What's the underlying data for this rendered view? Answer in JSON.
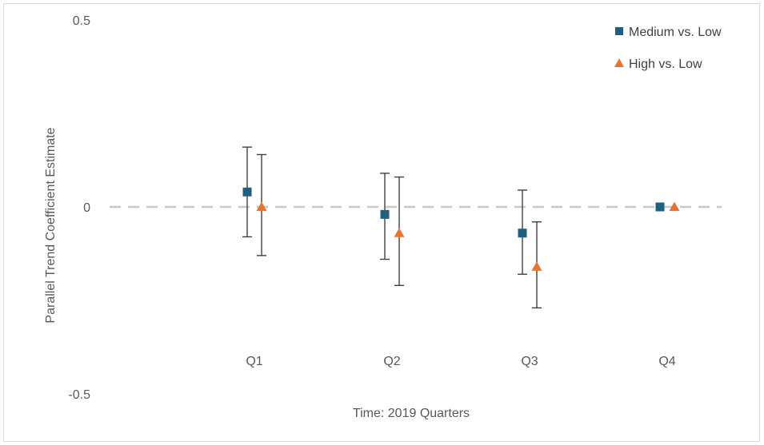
{
  "chart_data": {
    "type": "scatter",
    "title": "",
    "xlabel": "Time: 2019 Quarters",
    "ylabel": "Parallel Trend Coefficient Estimate",
    "ylim": [
      -0.5,
      0.5
    ],
    "yticks": [
      "0.5",
      "0",
      "-0.5"
    ],
    "categories": [
      "Q1",
      "Q2",
      "Q3",
      "Q4"
    ],
    "reference_line": {
      "y": 0,
      "style": "dashed"
    },
    "grid": false,
    "legend_position": "top-right",
    "series": [
      {
        "name": "Medium vs. Low",
        "marker": "square",
        "color": "#1f5f7f",
        "values": [
          0.04,
          -0.02,
          -0.07,
          0.0
        ],
        "error_low": [
          -0.08,
          -0.14,
          -0.18,
          null
        ],
        "error_high": [
          0.16,
          0.09,
          0.045,
          null
        ]
      },
      {
        "name": "High vs. Low",
        "marker": "triangle",
        "color": "#e8742f",
        "values": [
          0.0,
          -0.07,
          -0.16,
          0.0
        ],
        "error_low": [
          -0.13,
          -0.21,
          -0.27,
          null
        ],
        "error_high": [
          0.14,
          0.08,
          -0.04,
          null
        ]
      }
    ]
  }
}
